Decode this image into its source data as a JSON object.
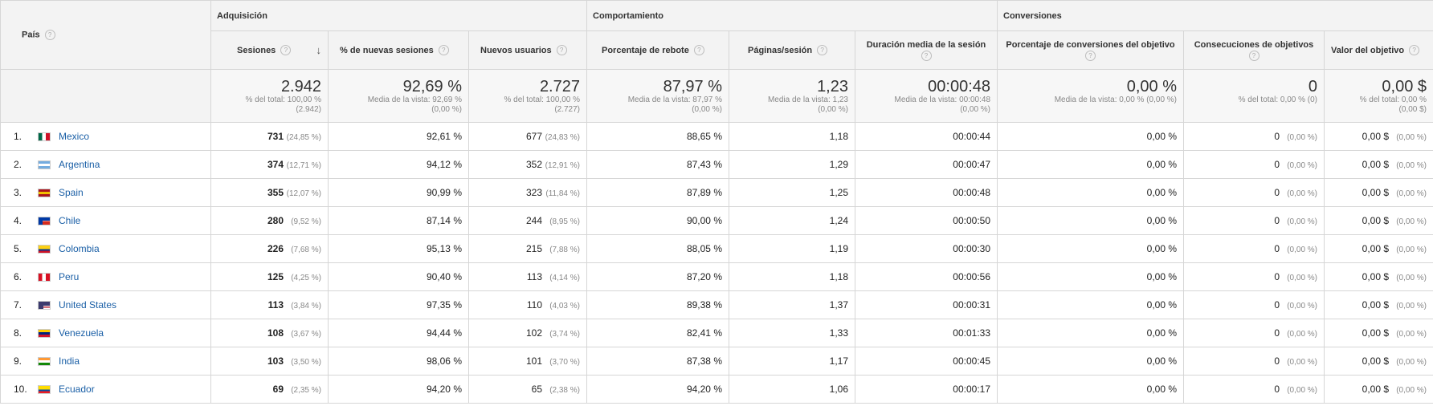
{
  "header": {
    "pais": "País",
    "groups": {
      "adquisicion": "Adquisición",
      "comportamiento": "Comportamiento",
      "conversiones": "Conversiones"
    },
    "metrics": {
      "sesiones": "Sesiones",
      "nuevas_sesiones": "% de nuevas sesiones",
      "nuevos_usuarios": "Nuevos usuarios",
      "rebote": "Porcentaje de rebote",
      "paginas": "Páginas/sesión",
      "duracion": "Duración media de la sesión",
      "conv_obj": "Porcentaje de conversiones del objetivo",
      "consec_obj": "Consecuciones de objetivos",
      "valor_obj": "Valor del objetivo"
    }
  },
  "totals": {
    "sesiones": {
      "big": "2.942",
      "l1": "% del total: 100,00 %",
      "l2": "(2.942)"
    },
    "nuevas_sesiones": {
      "big": "92,69 %",
      "l1": "Media de la vista: 92,69 %",
      "l2": "(0,00 %)"
    },
    "nuevos_usuarios": {
      "big": "2.727",
      "l1": "% del total: 100,00 %",
      "l2": "(2.727)"
    },
    "rebote": {
      "big": "87,97 %",
      "l1": "Media de la vista: 87,97 %",
      "l2": "(0,00 %)"
    },
    "paginas": {
      "big": "1,23",
      "l1": "Media de la vista: 1,23",
      "l2": "(0,00 %)"
    },
    "duracion": {
      "big": "00:00:48",
      "l1": "Media de la vista: 00:00:48",
      "l2": "(0,00 %)"
    },
    "conv_obj": {
      "big": "0,00 %",
      "l1": "Media de la vista: 0,00 % (0,00 %)",
      "l2": ""
    },
    "consec_obj": {
      "big": "0",
      "l1": "% del total: 0,00 % (0)",
      "l2": ""
    },
    "valor_obj": {
      "big": "0,00 $",
      "l1": "% del total: 0,00 %",
      "l2": "(0,00 $)"
    }
  },
  "flag_colors": {
    "mexico": [
      "#006847",
      "#ffffff",
      "#ce1126"
    ],
    "argentina": [
      "#74acdf",
      "#ffffff",
      "#74acdf"
    ],
    "spain": [
      "#aa151b",
      "#f1bf00",
      "#aa151b"
    ],
    "chile": [
      "#ffffff",
      "#ffffff",
      "#d52b1e"
    ],
    "colombia": [
      "#fcd116",
      "#003893",
      "#ce1126"
    ],
    "peru": [
      "#d91023",
      "#ffffff",
      "#d91023"
    ],
    "united-states": [
      "#b22234",
      "#ffffff",
      "#3c3b6e"
    ],
    "venezuela": [
      "#ffcc00",
      "#00247d",
      "#cf142b"
    ],
    "india": [
      "#ff9933",
      "#ffffff",
      "#138808"
    ],
    "ecuador": [
      "#ffdd00",
      "#034ea2",
      "#ed1c24"
    ]
  },
  "rows": [
    {
      "idx": "1.",
      "flag": "mexico",
      "country": "Mexico",
      "ses": "731",
      "ses_pct": "(24,85 %)",
      "nuevas": "92,61 %",
      "usu": "677",
      "usu_pct": "(24,83 %)",
      "rebote": "88,65 %",
      "pag": "1,18",
      "dur": "00:00:44",
      "conv": "0,00 %",
      "cons": "0",
      "cons_pct": "(0,00 %)",
      "valor": "0,00 $",
      "valor_pct": "(0,00 %)"
    },
    {
      "idx": "2.",
      "flag": "argentina",
      "country": "Argentina",
      "ses": "374",
      "ses_pct": "(12,71 %)",
      "nuevas": "94,12 %",
      "usu": "352",
      "usu_pct": "(12,91 %)",
      "rebote": "87,43 %",
      "pag": "1,29",
      "dur": "00:00:47",
      "conv": "0,00 %",
      "cons": "0",
      "cons_pct": "(0,00 %)",
      "valor": "0,00 $",
      "valor_pct": "(0,00 %)"
    },
    {
      "idx": "3.",
      "flag": "spain",
      "country": "Spain",
      "ses": "355",
      "ses_pct": "(12,07 %)",
      "nuevas": "90,99 %",
      "usu": "323",
      "usu_pct": "(11,84 %)",
      "rebote": "87,89 %",
      "pag": "1,25",
      "dur": "00:00:48",
      "conv": "0,00 %",
      "cons": "0",
      "cons_pct": "(0,00 %)",
      "valor": "0,00 $",
      "valor_pct": "(0,00 %)"
    },
    {
      "idx": "4.",
      "flag": "chile",
      "country": "Chile",
      "ses": "280",
      "ses_pct": "(9,52 %)",
      "nuevas": "87,14 %",
      "usu": "244",
      "usu_pct": "(8,95 %)",
      "rebote": "90,00 %",
      "pag": "1,24",
      "dur": "00:00:50",
      "conv": "0,00 %",
      "cons": "0",
      "cons_pct": "(0,00 %)",
      "valor": "0,00 $",
      "valor_pct": "(0,00 %)"
    },
    {
      "idx": "5.",
      "flag": "colombia",
      "country": "Colombia",
      "ses": "226",
      "ses_pct": "(7,68 %)",
      "nuevas": "95,13 %",
      "usu": "215",
      "usu_pct": "(7,88 %)",
      "rebote": "88,05 %",
      "pag": "1,19",
      "dur": "00:00:30",
      "conv": "0,00 %",
      "cons": "0",
      "cons_pct": "(0,00 %)",
      "valor": "0,00 $",
      "valor_pct": "(0,00 %)"
    },
    {
      "idx": "6.",
      "flag": "peru",
      "country": "Peru",
      "ses": "125",
      "ses_pct": "(4,25 %)",
      "nuevas": "90,40 %",
      "usu": "113",
      "usu_pct": "(4,14 %)",
      "rebote": "87,20 %",
      "pag": "1,18",
      "dur": "00:00:56",
      "conv": "0,00 %",
      "cons": "0",
      "cons_pct": "(0,00 %)",
      "valor": "0,00 $",
      "valor_pct": "(0,00 %)"
    },
    {
      "idx": "7.",
      "flag": "united-states",
      "country": "United States",
      "ses": "113",
      "ses_pct": "(3,84 %)",
      "nuevas": "97,35 %",
      "usu": "110",
      "usu_pct": "(4,03 %)",
      "rebote": "89,38 %",
      "pag": "1,37",
      "dur": "00:00:31",
      "conv": "0,00 %",
      "cons": "0",
      "cons_pct": "(0,00 %)",
      "valor": "0,00 $",
      "valor_pct": "(0,00 %)"
    },
    {
      "idx": "8.",
      "flag": "venezuela",
      "country": "Venezuela",
      "ses": "108",
      "ses_pct": "(3,67 %)",
      "nuevas": "94,44 %",
      "usu": "102",
      "usu_pct": "(3,74 %)",
      "rebote": "82,41 %",
      "pag": "1,33",
      "dur": "00:01:33",
      "conv": "0,00 %",
      "cons": "0",
      "cons_pct": "(0,00 %)",
      "valor": "0,00 $",
      "valor_pct": "(0,00 %)"
    },
    {
      "idx": "9.",
      "flag": "india",
      "country": "India",
      "ses": "103",
      "ses_pct": "(3,50 %)",
      "nuevas": "98,06 %",
      "usu": "101",
      "usu_pct": "(3,70 %)",
      "rebote": "87,38 %",
      "pag": "1,17",
      "dur": "00:00:45",
      "conv": "0,00 %",
      "cons": "0",
      "cons_pct": "(0,00 %)",
      "valor": "0,00 $",
      "valor_pct": "(0,00 %)"
    },
    {
      "idx": "10.",
      "flag": "ecuador",
      "country": "Ecuador",
      "ses": "69",
      "ses_pct": "(2,35 %)",
      "nuevas": "94,20 %",
      "usu": "65",
      "usu_pct": "(2,38 %)",
      "rebote": "94,20 %",
      "pag": "1,06",
      "dur": "00:00:17",
      "conv": "0,00 %",
      "cons": "0",
      "cons_pct": "(0,00 %)",
      "valor": "0,00 $",
      "valor_pct": "(0,00 %)"
    }
  ]
}
